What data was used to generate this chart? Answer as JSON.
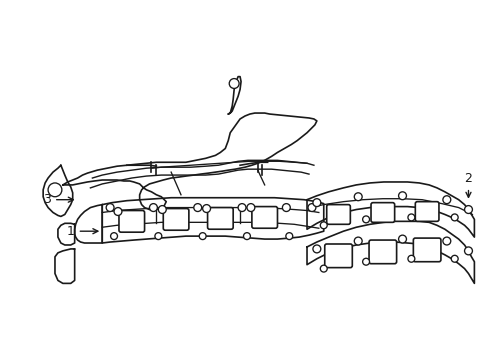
{
  "background_color": "#ffffff",
  "line_color": "#1a1a1a",
  "line_width": 1.2,
  "figsize": [
    4.89,
    3.6
  ],
  "dpi": 100
}
